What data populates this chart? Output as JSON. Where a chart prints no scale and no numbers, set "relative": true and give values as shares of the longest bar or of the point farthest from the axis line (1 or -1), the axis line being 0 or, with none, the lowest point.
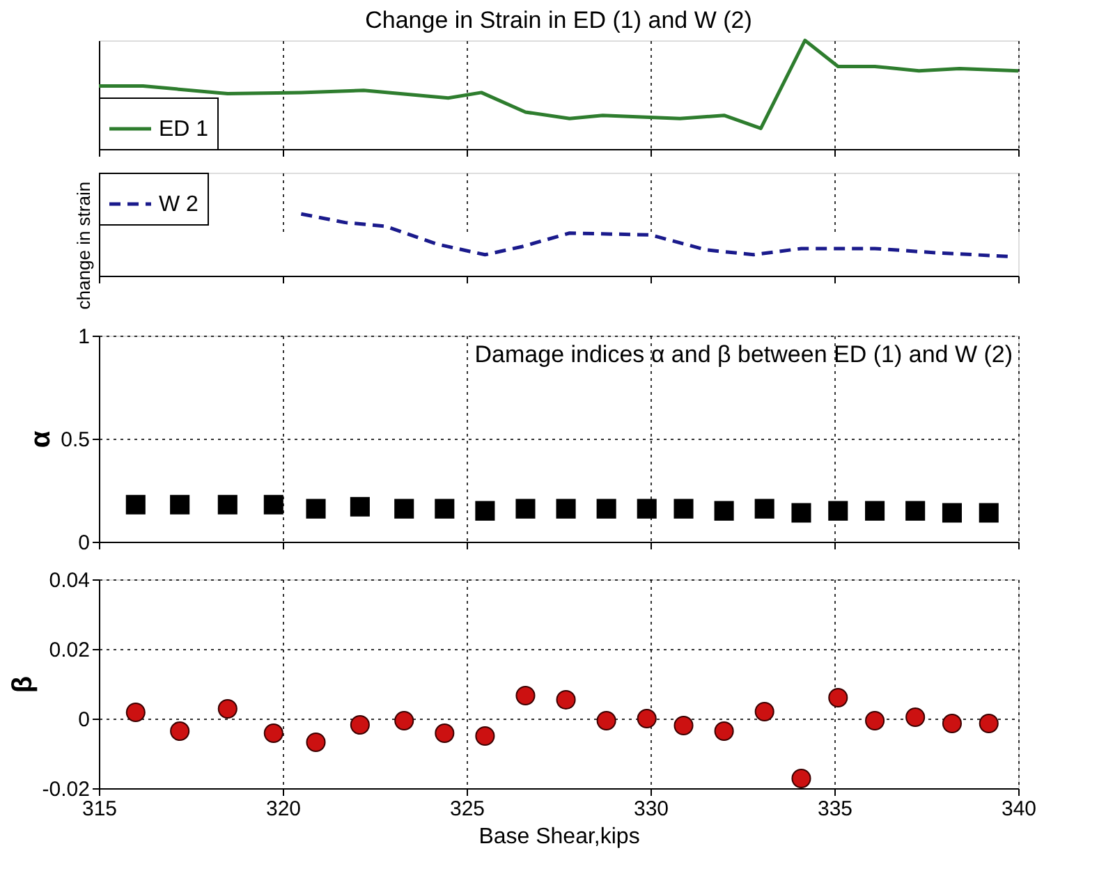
{
  "chart_data": [
    {
      "type": "line",
      "title": "Change in Strain in ED (1) and W (2)",
      "relative": true,
      "xlim": [
        315,
        340
      ],
      "xticks": [
        315,
        320,
        325,
        330,
        335,
        340
      ],
      "tick_labels": false,
      "grid": "x",
      "legend": "bottom left",
      "line_style": "solid",
      "series": [
        {
          "name": "ED 1",
          "color": "#2e7d2e",
          "x": [
            315,
            316.2,
            318.5,
            320.5,
            322.2,
            324.5,
            325.4,
            326.6,
            327.8,
            328.7,
            330.8,
            332.0,
            333.0,
            334.2,
            335.1,
            336.1,
            337.3,
            338.4,
            340
          ],
          "values": [
            0.58,
            0.58,
            0.51,
            0.52,
            0.54,
            0.47,
            0.52,
            0.34,
            0.28,
            0.31,
            0.28,
            0.31,
            0.19,
            1.0,
            0.76,
            0.76,
            0.72,
            0.74,
            0.72
          ]
        }
      ]
    },
    {
      "type": "line",
      "ylabel": "change in strain",
      "relative": true,
      "xlim": [
        315,
        340
      ],
      "xticks": [
        315,
        320,
        325,
        330,
        335,
        340
      ],
      "tick_labels": false,
      "grid": "x",
      "legend": "top left",
      "line_style": "dashed",
      "series": [
        {
          "name": "W 2",
          "color": "#1a1a8c",
          "x": [
            320.5,
            321.7,
            322.8,
            324.2,
            325.5,
            326.5,
            327.8,
            330.0,
            331.5,
            332.8,
            334.1,
            336.1,
            337.8,
            339.8
          ],
          "values": [
            1.0,
            0.86,
            0.8,
            0.51,
            0.34,
            0.47,
            0.69,
            0.66,
            0.42,
            0.34,
            0.44,
            0.44,
            0.37,
            0.31
          ]
        }
      ]
    },
    {
      "type": "scatter",
      "ylabel": "α",
      "annotations": [
        "Damage indices α and β between ED (1) and W (2)"
      ],
      "xlim": [
        315,
        340
      ],
      "xticks": [
        315,
        320,
        325,
        330,
        335,
        340
      ],
      "ylim": [
        0,
        1
      ],
      "yticks": [
        0,
        0.5,
        1
      ],
      "tick_labels": "y",
      "grid": true,
      "marker": "square",
      "series": [
        {
          "color": "#000000",
          "x": [
            316.0,
            317.2,
            318.5,
            319.75,
            320.9,
            322.1,
            323.3,
            324.4,
            325.5,
            326.6,
            327.7,
            328.8,
            329.9,
            330.9,
            332.0,
            333.1,
            334.1,
            335.1,
            336.1,
            337.2,
            338.2,
            339.2
          ],
          "values": [
            0.18,
            0.18,
            0.18,
            0.18,
            0.16,
            0.17,
            0.16,
            0.16,
            0.15,
            0.16,
            0.16,
            0.16,
            0.16,
            0.16,
            0.15,
            0.16,
            0.14,
            0.15,
            0.15,
            0.15,
            0.14,
            0.14
          ]
        }
      ]
    },
    {
      "type": "scatter",
      "xlabel": "Base Shear,kips",
      "ylabel": "β",
      "xlim": [
        315,
        340
      ],
      "xticks": [
        315,
        320,
        325,
        330,
        335,
        340
      ],
      "ylim": [
        -0.02,
        0.04
      ],
      "yticks": [
        -0.02,
        0,
        0.02,
        0.04
      ],
      "grid": true,
      "marker": "circle",
      "series": [
        {
          "color": "#cc1111",
          "x": [
            316.0,
            317.2,
            318.5,
            319.75,
            320.9,
            322.1,
            323.3,
            324.4,
            325.5,
            326.6,
            327.7,
            328.8,
            329.9,
            330.9,
            332.0,
            333.1,
            334.1,
            335.1,
            336.1,
            337.2,
            338.2,
            339.2
          ],
          "values": [
            0.0018,
            -0.0036,
            0.0028,
            -0.0042,
            -0.0068,
            -0.0018,
            -0.0006,
            -0.0042,
            -0.005,
            0.0066,
            0.0054,
            -0.0006,
            0.0,
            -0.002,
            -0.0036,
            0.002,
            -0.0172,
            0.006,
            -0.0006,
            0.0004,
            -0.0014,
            -0.0014
          ]
        }
      ]
    }
  ]
}
